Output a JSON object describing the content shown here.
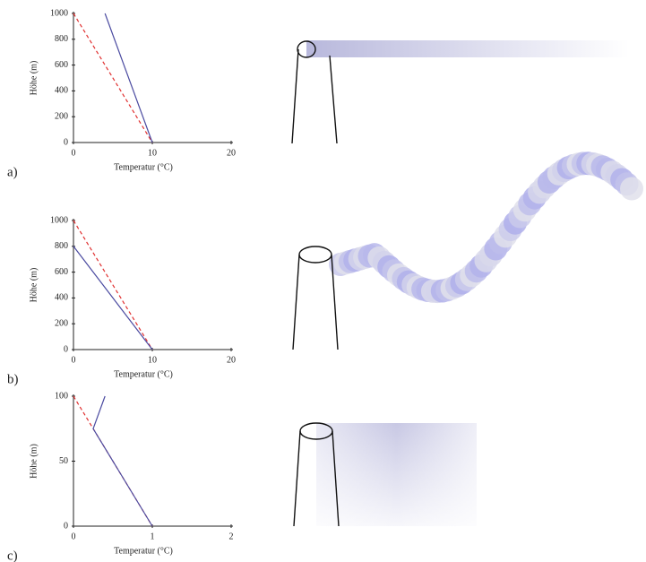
{
  "chart_data": [
    {
      "type": "line",
      "label": "a)",
      "x_label": "Temperatur (°C)",
      "y_label": "Höhe (m)",
      "xlim": [
        0,
        20
      ],
      "ylim": [
        0,
        1000
      ],
      "xticks": [
        0,
        10,
        20
      ],
      "yticks": [
        0,
        200,
        400,
        600,
        800,
        1000
      ],
      "series": [
        {
          "color": "#e03030",
          "dashed": true,
          "x": [
            0,
            10
          ],
          "values": [
            1000,
            0
          ]
        },
        {
          "color": "#4a4aa0",
          "dashed": false,
          "x": [
            4,
            10
          ],
          "values": [
            1000,
            0
          ]
        }
      ]
    },
    {
      "type": "line",
      "label": "b)",
      "x_label": "Temperatur (°C)",
      "y_label": "Höhe (m)",
      "xlim": [
        0,
        20
      ],
      "ylim": [
        0,
        1000
      ],
      "xticks": [
        0,
        10,
        20
      ],
      "yticks": [
        0,
        200,
        400,
        600,
        800,
        1000
      ],
      "series": [
        {
          "color": "#e03030",
          "dashed": true,
          "x": [
            0,
            10
          ],
          "values": [
            1000,
            0
          ]
        },
        {
          "color": "#4a4aa0",
          "dashed": false,
          "x": [
            0,
            10
          ],
          "values": [
            800,
            0
          ]
        }
      ]
    },
    {
      "type": "line",
      "label": "c)",
      "x_label": "Temperatur (°C)",
      "y_label": "Höhe (m)",
      "xlim": [
        0,
        2
      ],
      "ylim": [
        0,
        100
      ],
      "xticks": [
        0,
        1,
        2
      ],
      "yticks": [
        0,
        50,
        100
      ],
      "series": [
        {
          "color": "#e03030",
          "dashed": true,
          "x": [
            0,
            1
          ],
          "values": [
            100,
            0
          ]
        },
        {
          "color": "#4a4aa0",
          "dashed": false,
          "x": [
            1,
            0.25,
            0.4
          ],
          "values": [
            0,
            75,
            100
          ]
        }
      ]
    }
  ]
}
